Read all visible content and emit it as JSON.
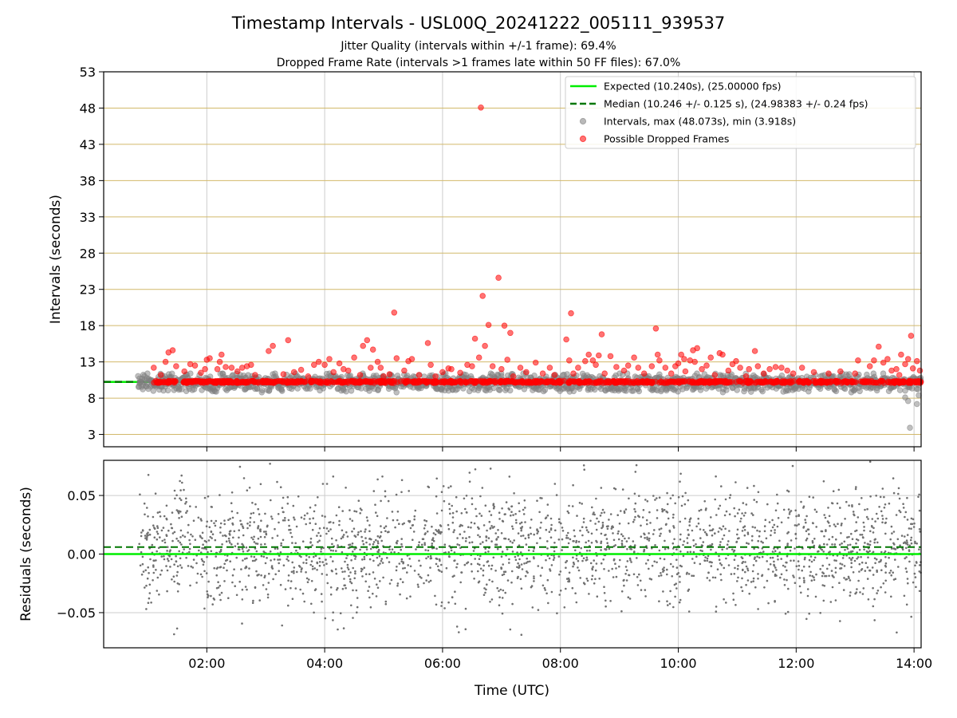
{
  "chart_data": {
    "type": "scatter",
    "title": "Timestamp Intervals - USL00Q_20241222_005111_939537",
    "subtitle_lines": [
      "Jitter Quality (intervals within +/-1 frame): 69.4%",
      "Dropped Frame Rate (intervals >1 frames late within 50 FF files): 67.0%"
    ],
    "xlabel": "Time (UTC)",
    "x_range_hours": [
      0.25,
      14.12
    ],
    "x_ticks": [
      {
        "value": 2,
        "label": "02:00"
      },
      {
        "value": 4,
        "label": "04:00"
      },
      {
        "value": 6,
        "label": "06:00"
      },
      {
        "value": 8,
        "label": "08:00"
      },
      {
        "value": 10,
        "label": "10:00"
      },
      {
        "value": 12,
        "label": "12:00"
      },
      {
        "value": 14,
        "label": "14:00"
      }
    ],
    "top_panel": {
      "ylabel": "Intervals (seconds)",
      "ylim": [
        1.3,
        53
      ],
      "y_ticks": [
        3,
        8,
        13,
        18,
        23,
        28,
        33,
        38,
        43,
        48,
        53
      ],
      "grid": true,
      "legend_position": "top-right",
      "expected_line": {
        "value": 10.24,
        "color": "#00ee00",
        "label": "Expected (10.240s), (25.00000 fps)"
      },
      "median_line": {
        "value": 10.246,
        "color": "#007700",
        "label": "Median (10.246 +/- 0.125 s), (24.98383 +/- 0.24 fps)"
      },
      "intervals_series": {
        "name": "Intervals, max (48.073s), min (3.918s)",
        "color": "#808080",
        "x_start": 0.83,
        "x_end": 14.12,
        "count": 1500,
        "typical_range": [
          8.8,
          11.4
        ],
        "outliers": [
          [
            0.86,
            10.2
          ],
          [
            13.9,
            7.6
          ],
          [
            13.93,
            3.918
          ],
          [
            14.05,
            7.2
          ],
          [
            14.08,
            8.4
          ],
          [
            13.85,
            8.1
          ]
        ]
      },
      "dropped_series": {
        "name": "Possible Dropped Frames",
        "color": "#ff0000",
        "baseline_value": 10.24,
        "points": [
          [
            1.1,
            12.2
          ],
          [
            1.22,
            11.2
          ],
          [
            1.3,
            13.0
          ],
          [
            1.35,
            14.3
          ],
          [
            1.42,
            14.6
          ],
          [
            1.48,
            12.4
          ],
          [
            1.62,
            11.7
          ],
          [
            1.72,
            12.7
          ],
          [
            1.8,
            12.5
          ],
          [
            1.9,
            11.5
          ],
          [
            1.97,
            12.0
          ],
          [
            2.0,
            13.3
          ],
          [
            2.05,
            13.5
          ],
          [
            2.18,
            12.0
          ],
          [
            2.22,
            13.0
          ],
          [
            2.25,
            14.0
          ],
          [
            2.32,
            12.3
          ],
          [
            2.42,
            12.2
          ],
          [
            2.52,
            11.7
          ],
          [
            2.6,
            12.2
          ],
          [
            2.68,
            12.4
          ],
          [
            2.75,
            12.6
          ],
          [
            2.82,
            11.2
          ],
          [
            3.05,
            14.5
          ],
          [
            3.12,
            15.2
          ],
          [
            3.3,
            11.3
          ],
          [
            3.38,
            16.0
          ],
          [
            3.48,
            11.6
          ],
          [
            3.6,
            11.9
          ],
          [
            3.72,
            11.0
          ],
          [
            3.82,
            12.6
          ],
          [
            3.9,
            13.0
          ],
          [
            4.0,
            12.6
          ],
          [
            4.08,
            13.4
          ],
          [
            4.15,
            11.6
          ],
          [
            4.25,
            12.8
          ],
          [
            4.32,
            12.0
          ],
          [
            4.4,
            11.8
          ],
          [
            4.5,
            13.6
          ],
          [
            4.6,
            11.2
          ],
          [
            4.65,
            15.2
          ],
          [
            4.72,
            16.0
          ],
          [
            4.78,
            12.2
          ],
          [
            4.82,
            14.7
          ],
          [
            4.9,
            13.0
          ],
          [
            4.95,
            12.2
          ],
          [
            5.0,
            11.0
          ],
          [
            5.1,
            11.3
          ],
          [
            5.18,
            19.8
          ],
          [
            5.22,
            13.5
          ],
          [
            5.35,
            11.8
          ],
          [
            5.42,
            13.1
          ],
          [
            5.48,
            13.4
          ],
          [
            5.6,
            11.2
          ],
          [
            5.75,
            15.6
          ],
          [
            5.8,
            12.6
          ],
          [
            5.88,
            11.0
          ],
          [
            6.0,
            11.6
          ],
          [
            6.1,
            12.1
          ],
          [
            6.15,
            12.0
          ],
          [
            6.3,
            11.5
          ],
          [
            6.42,
            12.6
          ],
          [
            6.5,
            12.4
          ],
          [
            6.55,
            16.2
          ],
          [
            6.62,
            13.6
          ],
          [
            6.65,
            48.07
          ],
          [
            6.68,
            22.1
          ],
          [
            6.72,
            15.2
          ],
          [
            6.78,
            18.1
          ],
          [
            6.85,
            12.4
          ],
          [
            6.95,
            24.6
          ],
          [
            7.0,
            12.0
          ],
          [
            7.05,
            18.0
          ],
          [
            7.1,
            13.3
          ],
          [
            7.15,
            17.0
          ],
          [
            7.2,
            11.0
          ],
          [
            7.32,
            12.2
          ],
          [
            7.42,
            11.6
          ],
          [
            7.58,
            12.9
          ],
          [
            7.7,
            11.4
          ],
          [
            7.82,
            12.2
          ],
          [
            7.9,
            11.2
          ],
          [
            8.1,
            16.1
          ],
          [
            8.15,
            13.2
          ],
          [
            8.18,
            19.7
          ],
          [
            8.22,
            11.4
          ],
          [
            8.3,
            12.2
          ],
          [
            8.42,
            13.1
          ],
          [
            8.48,
            14.0
          ],
          [
            8.55,
            13.2
          ],
          [
            8.6,
            12.6
          ],
          [
            8.65,
            13.9
          ],
          [
            8.7,
            16.8
          ],
          [
            8.75,
            11.4
          ],
          [
            8.85,
            13.8
          ],
          [
            8.95,
            12.3
          ],
          [
            9.08,
            11.8
          ],
          [
            9.15,
            12.5
          ],
          [
            9.25,
            13.6
          ],
          [
            9.32,
            12.2
          ],
          [
            9.42,
            11.4
          ],
          [
            9.55,
            12.4
          ],
          [
            9.62,
            17.6
          ],
          [
            9.65,
            14.0
          ],
          [
            9.68,
            13.2
          ],
          [
            9.78,
            12.2
          ],
          [
            9.88,
            11.4
          ],
          [
            9.95,
            12.4
          ],
          [
            10.0,
            12.8
          ],
          [
            10.05,
            14.0
          ],
          [
            10.1,
            13.4
          ],
          [
            10.12,
            11.7
          ],
          [
            10.2,
            13.2
          ],
          [
            10.25,
            14.6
          ],
          [
            10.28,
            13.0
          ],
          [
            10.32,
            14.9
          ],
          [
            10.4,
            12.0
          ],
          [
            10.48,
            12.5
          ],
          [
            10.55,
            13.6
          ],
          [
            10.62,
            11.2
          ],
          [
            10.7,
            14.2
          ],
          [
            10.75,
            14.0
          ],
          [
            10.85,
            11.8
          ],
          [
            10.92,
            12.7
          ],
          [
            10.98,
            13.1
          ],
          [
            11.05,
            12.2
          ],
          [
            11.15,
            11.0
          ],
          [
            11.2,
            12.0
          ],
          [
            11.3,
            14.5
          ],
          [
            11.35,
            12.4
          ],
          [
            11.45,
            11.4
          ],
          [
            11.55,
            12.0
          ],
          [
            11.65,
            12.3
          ],
          [
            11.75,
            12.2
          ],
          [
            11.85,
            11.8
          ],
          [
            11.95,
            11.4
          ],
          [
            12.1,
            12.2
          ],
          [
            12.3,
            11.6
          ],
          [
            12.55,
            11.4
          ],
          [
            12.75,
            11.7
          ],
          [
            13.0,
            11.4
          ],
          [
            13.05,
            13.2
          ],
          [
            13.25,
            12.4
          ],
          [
            13.32,
            13.2
          ],
          [
            13.4,
            15.1
          ],
          [
            13.48,
            12.9
          ],
          [
            13.55,
            13.4
          ],
          [
            13.62,
            11.8
          ],
          [
            13.7,
            12.0
          ],
          [
            13.75,
            11.2
          ],
          [
            13.78,
            14.0
          ],
          [
            13.85,
            12.7
          ],
          [
            13.9,
            13.4
          ],
          [
            13.95,
            16.6
          ],
          [
            13.98,
            12.1
          ],
          [
            14.05,
            13.1
          ],
          [
            14.1,
            11.8
          ]
        ]
      }
    },
    "bottom_panel": {
      "ylabel": "Residuals (seconds)",
      "ylim": [
        -0.08,
        0.08
      ],
      "y_ticks": [
        {
          "value": 0.05,
          "label": "0.05"
        },
        {
          "value": 0.0,
          "label": "0.00"
        },
        {
          "value": -0.05,
          "label": "−0.05"
        }
      ],
      "grid": true,
      "zero_line": {
        "value": 0.0,
        "color": "#00ee00"
      },
      "median_line": {
        "value": 0.006,
        "color": "#007700"
      },
      "residual_series": {
        "name": "Residuals",
        "color": "#707070",
        "x_start": 0.83,
        "x_end": 14.12,
        "count": 2400,
        "spread_sd": 0.025,
        "mean": 0.006
      }
    }
  }
}
